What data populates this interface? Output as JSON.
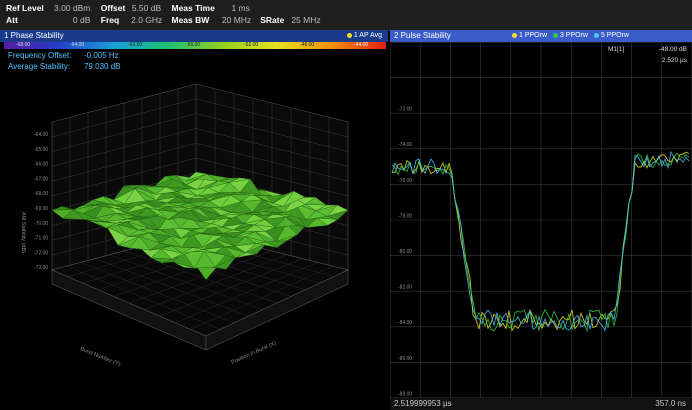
{
  "header": {
    "row1": [
      {
        "key": "Ref Level",
        "value": "3.00 dBm"
      },
      {
        "key": "Offset",
        "value": "5.50 dB"
      },
      {
        "key": "Meas Time",
        "value": "1 ms"
      }
    ],
    "row2": [
      {
        "key": "Att",
        "value": "0 dB"
      },
      {
        "key": "Freq",
        "value": "2.0 GHz"
      },
      {
        "key": "Meas BW",
        "value": "20 MHz"
      },
      {
        "key": "SRate",
        "value": "25 MHz"
      }
    ]
  },
  "panel1": {
    "title": "1 Phase Stability",
    "legend": "1 AP Avg",
    "legend_color": "#f0e020",
    "colorbar_labels": [
      "-68.00",
      "-64.00",
      "-60.00",
      "-56.00",
      "-52.00",
      "-48.00",
      "-44.00"
    ],
    "info": [
      {
        "label": "Frequency Offset:",
        "value": "-0.005 Hz"
      },
      {
        "label": "Average Stability:",
        "value": "79.030 dB"
      }
    ],
    "z_axis_label": "AM Stability (dB)",
    "z_ticks": [
      "-64.00",
      "-65.00",
      "-66.00",
      "-67.00",
      "-68.00",
      "-69.00",
      "-70.00",
      "-71.00",
      "-72.00",
      "-73.00"
    ],
    "x_axis_label": "Burst Number (Y)",
    "y_axis_label": "Position in Burst (X)"
  },
  "panel2": {
    "title": "2 Pulse Stability",
    "legends": [
      {
        "label": "1 PPOrw",
        "color": "#f0e020"
      },
      {
        "label": "3 PPOrw",
        "color": "#2ecc40"
      },
      {
        "label": "5 PPOrw",
        "color": "#4fc3ff"
      }
    ],
    "marker": {
      "name": "M1[1]",
      "value": "-48.00 dB",
      "position": "2.520 µs"
    },
    "y_ticks": [
      "-72.00",
      "-74.00",
      "-76.00",
      "-78.00",
      "-80.00",
      "-82.00",
      "-84.00",
      "-86.00",
      "-88.00"
    ],
    "x_start": "2.519999953 µs",
    "x_end": "357.0 ns"
  },
  "colors": {
    "background": "#000000",
    "panel1_title_bg": "#1a3a8a",
    "panel2_title_bg": "#3a5cc8",
    "surface": "#4fae2a",
    "info_text": "#4fc3ff"
  }
}
